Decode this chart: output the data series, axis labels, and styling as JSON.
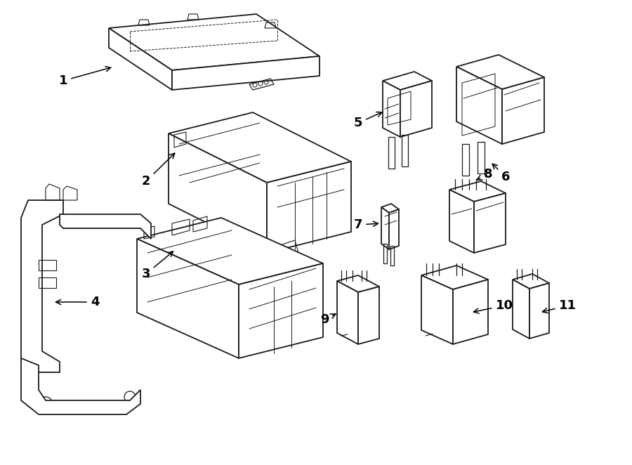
{
  "bg_color": "#ffffff",
  "line_color": "#1a1a1a",
  "lw": 1.3,
  "fig_w": 9.0,
  "fig_h": 6.62,
  "dpi": 100
}
